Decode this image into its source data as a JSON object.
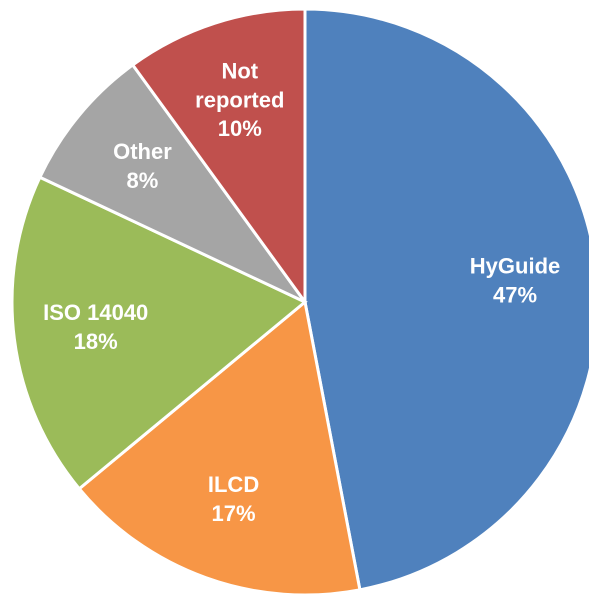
{
  "chart_data": {
    "type": "pie",
    "categories": [
      "HyGuide",
      "ILCD",
      "ISO 14040",
      "Other",
      "Not reported"
    ],
    "values": [
      47,
      17,
      18,
      8,
      10
    ],
    "value_labels": [
      "47%",
      "17%",
      "18%",
      "8%",
      "10%"
    ],
    "colors": [
      "#4f81bd",
      "#f79646",
      "#9bbb59",
      "#a5a5a5",
      "#c0504d"
    ]
  }
}
